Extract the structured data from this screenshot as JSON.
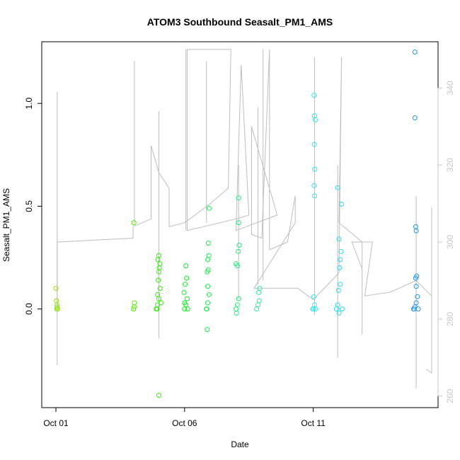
{
  "chart_data": {
    "type": "scatter",
    "title": "ATOM3 Southbound Seasalt_PM1_AMS",
    "xlabel": "Date",
    "ylabel": "Seasalt_PM1_AMS",
    "x_ticks": [
      "Oct 01",
      "Oct 06",
      "Oct 11"
    ],
    "y_left_ticks": [
      "0.0",
      "0.5",
      "1.0"
    ],
    "y_right_ticks": [
      "260",
      "280",
      "300",
      "320",
      "340"
    ],
    "ylim_left": [
      -0.48,
      1.3
    ],
    "ylim_right": [
      257,
      352
    ],
    "xlim_days": [
      -0.55,
      14.85
    ],
    "right_axis_color": "#c8c8c8",
    "line_color": "#bebebe",
    "right_series_polyline": [
      [
        0.05,
        300
      ],
      [
        0.05,
        268
      ],
      [
        0.05,
        300
      ],
      [
        3.0,
        301
      ],
      [
        3.0,
        304
      ],
      [
        3.7,
        306
      ],
      [
        3.7,
        325
      ],
      [
        4.0,
        318
      ],
      [
        4.4,
        314
      ],
      [
        4.4,
        304
      ],
      [
        5.0,
        305
      ],
      [
        6.0,
        310
      ],
      [
        6.7,
        314
      ],
      [
        6.8,
        350
      ],
      [
        5.1,
        350
      ],
      [
        5.1,
        303
      ],
      [
        7.0,
        306
      ],
      [
        7.5,
        307
      ],
      [
        7.2,
        346
      ],
      [
        7.0,
        303
      ],
      [
        8.6,
        307
      ],
      [
        7.6,
        330
      ],
      [
        7.6,
        302
      ],
      [
        8.0,
        301
      ],
      [
        8.3,
        350
      ],
      [
        8.3,
        298
      ],
      [
        9.0,
        300
      ],
      [
        9.3,
        312
      ],
      [
        9.3,
        305
      ],
      [
        7.7,
        288
      ],
      [
        9.4,
        288
      ],
      [
        10.0,
        285
      ],
      [
        11.0,
        292
      ],
      [
        11.1,
        348
      ],
      [
        11.0,
        305
      ],
      [
        11.9,
        300
      ],
      [
        11.9,
        276
      ],
      [
        11.9,
        293
      ],
      [
        11.5,
        300
      ],
      [
        12.3,
        300
      ],
      [
        12.0,
        286
      ],
      [
        13.0,
        287
      ],
      [
        14.0,
        290
      ],
      [
        14.6,
        286
      ],
      [
        14.6,
        309
      ],
      [
        14.6,
        266
      ],
      [
        14.4,
        267
      ]
    ],
    "right_series_spikes": [
      {
        "x": 0.05,
        "lo": 282,
        "hi": 339
      },
      {
        "x": 3.05,
        "lo": 305,
        "hi": 347
      },
      {
        "x": 4.0,
        "lo": 275,
        "hi": 334
      },
      {
        "x": 5.05,
        "lo": 303,
        "hi": 350
      },
      {
        "x": 5.85,
        "lo": 305,
        "hi": 347
      },
      {
        "x": 7.1,
        "lo": 285,
        "hi": 320
      },
      {
        "x": 7.85,
        "lo": 289,
        "hi": 335
      },
      {
        "x": 8.05,
        "lo": 290,
        "hi": 350
      },
      {
        "x": 10.05,
        "lo": 281,
        "hi": 348
      },
      {
        "x": 10.95,
        "lo": 270,
        "hi": 320
      },
      {
        "x": 14.0,
        "lo": 262,
        "hi": 312
      }
    ],
    "series": [
      {
        "name": "",
        "values": [
          {
            "x": 0.03,
            "y": 0.0,
            "c": "#8ee800"
          },
          {
            "x": 0.05,
            "y": 0.01,
            "c": "#8ee800"
          },
          {
            "x": 0.04,
            "y": 0.02,
            "c": "#8ee800"
          },
          {
            "x": 0.02,
            "y": 0.04,
            "c": "#8ee800"
          },
          {
            "x": 0.0,
            "y": 0.1,
            "c": "#8ee800"
          },
          {
            "x": 0.06,
            "y": 0.0,
            "c": "#8ee800"
          },
          {
            "x": 3.02,
            "y": 0.0,
            "c": "#55ee00"
          },
          {
            "x": 3.04,
            "y": 0.01,
            "c": "#55ee00"
          },
          {
            "x": 3.05,
            "y": 0.03,
            "c": "#55ee00"
          },
          {
            "x": 3.03,
            "y": 0.42,
            "c": "#55ee00"
          },
          {
            "x": 3.9,
            "y": 0.0,
            "c": "#2cf000"
          },
          {
            "x": 3.95,
            "y": 0.02,
            "c": "#2cf000"
          },
          {
            "x": 4.0,
            "y": 0.05,
            "c": "#2cf000"
          },
          {
            "x": 4.05,
            "y": 0.1,
            "c": "#2cf000"
          },
          {
            "x": 3.98,
            "y": 0.14,
            "c": "#2cf000"
          },
          {
            "x": 4.02,
            "y": 0.2,
            "c": "#2cf000"
          },
          {
            "x": 4.0,
            "y": 0.26,
            "c": "#2cf000"
          },
          {
            "x": 3.96,
            "y": 0.24,
            "c": "#2cf000"
          },
          {
            "x": 4.04,
            "y": 0.22,
            "c": "#2cf000"
          },
          {
            "x": 4.0,
            "y": 0.18,
            "c": "#2cf000"
          },
          {
            "x": 3.95,
            "y": 0.07,
            "c": "#2cf000"
          },
          {
            "x": 4.08,
            "y": 0.03,
            "c": "#2cf000"
          },
          {
            "x": 4.0,
            "y": -0.42,
            "c": "#2cf000"
          },
          {
            "x": 3.93,
            "y": 0.0,
            "c": "#2cf000"
          },
          {
            "x": 5.0,
            "y": 0.0,
            "c": "#10f020"
          },
          {
            "x": 5.05,
            "y": 0.02,
            "c": "#10f020"
          },
          {
            "x": 5.1,
            "y": 0.05,
            "c": "#10f020"
          },
          {
            "x": 4.98,
            "y": 0.08,
            "c": "#10f020"
          },
          {
            "x": 5.02,
            "y": 0.12,
            "c": "#10f020"
          },
          {
            "x": 5.08,
            "y": 0.15,
            "c": "#10f020"
          },
          {
            "x": 5.05,
            "y": 0.21,
            "c": "#10f020"
          },
          {
            "x": 5.0,
            "y": 0.03,
            "c": "#10f020"
          },
          {
            "x": 5.12,
            "y": 0.0,
            "c": "#10f020"
          },
          {
            "x": 5.85,
            "y": 0.0,
            "c": "#14f04a"
          },
          {
            "x": 5.9,
            "y": 0.03,
            "c": "#14f04a"
          },
          {
            "x": 5.95,
            "y": 0.07,
            "c": "#14f04a"
          },
          {
            "x": 5.9,
            "y": 0.11,
            "c": "#14f04a"
          },
          {
            "x": 5.88,
            "y": 0.18,
            "c": "#14f04a"
          },
          {
            "x": 5.92,
            "y": 0.19,
            "c": "#14f04a"
          },
          {
            "x": 5.9,
            "y": 0.24,
            "c": "#14f04a"
          },
          {
            "x": 5.94,
            "y": 0.26,
            "c": "#14f04a"
          },
          {
            "x": 5.92,
            "y": 0.32,
            "c": "#14f04a"
          },
          {
            "x": 5.95,
            "y": 0.49,
            "c": "#14f04a"
          },
          {
            "x": 5.88,
            "y": -0.1,
            "c": "#14f04a"
          },
          {
            "x": 5.86,
            "y": 0.0,
            "c": "#14f04a"
          },
          {
            "x": 7.0,
            "y": 0.0,
            "c": "#1ef078"
          },
          {
            "x": 7.05,
            "y": 0.02,
            "c": "#1ef078"
          },
          {
            "x": 7.1,
            "y": 0.05,
            "c": "#1ef078"
          },
          {
            "x": 7.0,
            "y": 0.22,
            "c": "#1ef078"
          },
          {
            "x": 7.05,
            "y": 0.21,
            "c": "#1ef078"
          },
          {
            "x": 7.08,
            "y": 0.28,
            "c": "#1ef078"
          },
          {
            "x": 7.12,
            "y": 0.31,
            "c": "#1ef078"
          },
          {
            "x": 7.1,
            "y": 0.42,
            "c": "#1ef078"
          },
          {
            "x": 7.1,
            "y": 0.54,
            "c": "#1ef078"
          },
          {
            "x": 7.02,
            "y": -0.02,
            "c": "#1ef078"
          },
          {
            "x": 7.8,
            "y": 0.0,
            "c": "#28f096"
          },
          {
            "x": 7.85,
            "y": 0.02,
            "c": "#28f096"
          },
          {
            "x": 7.9,
            "y": 0.04,
            "c": "#28f096"
          },
          {
            "x": 7.88,
            "y": 0.08,
            "c": "#28f096"
          },
          {
            "x": 7.92,
            "y": 0.1,
            "c": "#28f096"
          },
          {
            "x": 10.0,
            "y": 0.0,
            "c": "#30e8e8"
          },
          {
            "x": 10.05,
            "y": 0.02,
            "c": "#30e8e8"
          },
          {
            "x": 10.02,
            "y": 0.06,
            "c": "#30e8e8"
          },
          {
            "x": 10.05,
            "y": 0.55,
            "c": "#30e8e8"
          },
          {
            "x": 10.03,
            "y": 0.6,
            "c": "#30e8e8"
          },
          {
            "x": 10.06,
            "y": 0.68,
            "c": "#30e8e8"
          },
          {
            "x": 10.04,
            "y": 0.8,
            "c": "#30e8e8"
          },
          {
            "x": 10.08,
            "y": 0.92,
            "c": "#30e8e8"
          },
          {
            "x": 10.05,
            "y": 0.94,
            "c": "#30e8e8"
          },
          {
            "x": 10.03,
            "y": 1.04,
            "c": "#30e8e8"
          },
          {
            "x": 10.08,
            "y": 0.0,
            "c": "#30e8e8"
          },
          {
            "x": 9.98,
            "y": 0.0,
            "c": "#30e8e8"
          },
          {
            "x": 10.9,
            "y": 0.0,
            "c": "#28dcf0"
          },
          {
            "x": 10.95,
            "y": 0.02,
            "c": "#28dcf0"
          },
          {
            "x": 11.0,
            "y": -0.02,
            "c": "#28dcf0"
          },
          {
            "x": 10.98,
            "y": 0.09,
            "c": "#28dcf0"
          },
          {
            "x": 11.05,
            "y": 0.12,
            "c": "#28dcf0"
          },
          {
            "x": 11.02,
            "y": 0.2,
            "c": "#28dcf0"
          },
          {
            "x": 11.05,
            "y": 0.24,
            "c": "#28dcf0"
          },
          {
            "x": 11.08,
            "y": 0.28,
            "c": "#28dcf0"
          },
          {
            "x": 11.0,
            "y": 0.34,
            "c": "#28dcf0"
          },
          {
            "x": 11.1,
            "y": 0.51,
            "c": "#28dcf0"
          },
          {
            "x": 10.95,
            "y": 0.59,
            "c": "#28dcf0"
          },
          {
            "x": 11.12,
            "y": 0.0,
            "c": "#28dcf0"
          },
          {
            "x": 13.9,
            "y": 0.0,
            "c": "#1e96f0"
          },
          {
            "x": 13.95,
            "y": 0.01,
            "c": "#1e96f0"
          },
          {
            "x": 14.0,
            "y": 0.03,
            "c": "#1e96f0"
          },
          {
            "x": 14.05,
            "y": 0.06,
            "c": "#1e96f0"
          },
          {
            "x": 14.0,
            "y": 0.11,
            "c": "#1e96f0"
          },
          {
            "x": 13.98,
            "y": 0.15,
            "c": "#1e96f0"
          },
          {
            "x": 14.02,
            "y": 0.16,
            "c": "#1e96f0"
          },
          {
            "x": 14.0,
            "y": 0.38,
            "c": "#1e96f0"
          },
          {
            "x": 13.98,
            "y": 0.4,
            "c": "#1e96f0"
          },
          {
            "x": 13.95,
            "y": 0.93,
            "c": "#1e96f0"
          },
          {
            "x": 13.95,
            "y": 1.25,
            "c": "#1e96f0"
          },
          {
            "x": 13.92,
            "y": 0.0,
            "c": "#1e96f0"
          },
          {
            "x": 14.08,
            "y": 0.0,
            "c": "#1e96f0"
          }
        ]
      }
    ],
    "grid": false,
    "legend": "none"
  }
}
